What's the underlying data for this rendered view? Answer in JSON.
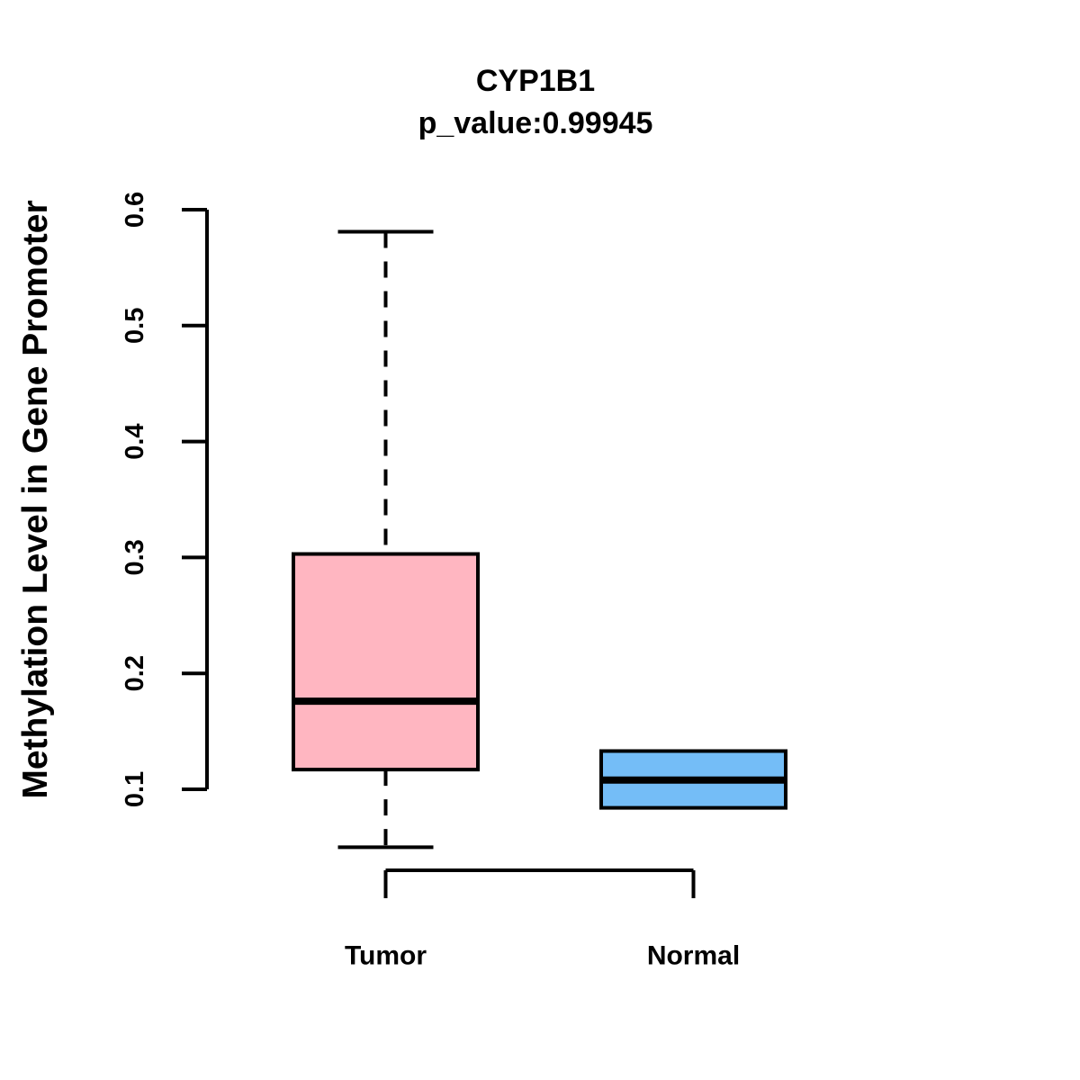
{
  "chart_data": {
    "type": "boxplot",
    "title": "CYP1B1",
    "subtitle": "p_value:0.99945",
    "p_value": 0.99945,
    "ylabel": "Methylation Level in Gene Promoter",
    "xlabel": "",
    "categories": [
      "Tumor",
      "Normal"
    ],
    "ylim": [
      0.1,
      0.6
    ],
    "yticks": [
      0.1,
      0.2,
      0.3,
      0.4,
      0.5,
      0.6
    ],
    "grid": false,
    "legend": "none",
    "series": [
      {
        "name": "Tumor",
        "min": 0.05,
        "q1": 0.117,
        "median": 0.176,
        "q3": 0.303,
        "max": 0.581,
        "fill": "#FFB6C1",
        "whisker_style": "dashed"
      },
      {
        "name": "Normal",
        "min": 0.084,
        "q1": 0.084,
        "median": 0.108,
        "q3": 0.133,
        "max": 0.133,
        "fill": "#74BDF7",
        "whisker_style": "none"
      }
    ],
    "colors": {
      "tumor_fill": "#FFB6C1",
      "normal_fill": "#74BDF7",
      "stroke": "#000000",
      "background": "#FFFFFF"
    }
  }
}
